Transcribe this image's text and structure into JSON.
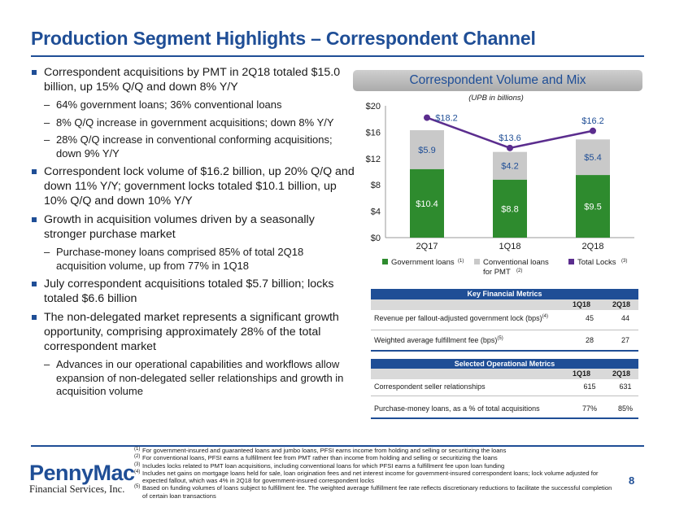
{
  "title": "Production Segment Highlights – Correspondent Channel",
  "bullets": [
    {
      "level": 1,
      "text": "Correspondent acquisitions by PMT in 2Q18 totaled $15.0 billion, up 15% Q/Q and down 8% Y/Y"
    },
    {
      "level": 2,
      "text": "64% government loans; 36% conventional loans"
    },
    {
      "level": 2,
      "text": "8% Q/Q increase in government acquisitions; down 8% Y/Y"
    },
    {
      "level": 2,
      "text": "28% Q/Q increase in conventional conforming acquisitions; down 9% Y/Y"
    },
    {
      "level": 1,
      "text": "Correspondent lock volume of $16.2 billion, up 20% Q/Q and down 11% Y/Y; government locks totaled $10.1 billion, up 10% Q/Q and down 10% Y/Y"
    },
    {
      "level": 1,
      "text": "Growth in acquisition volumes driven by a seasonally stronger purchase market"
    },
    {
      "level": 2,
      "text": "Purchase-money loans comprised 85% of total 2Q18 acquisition volume, up from 77% in 1Q18"
    },
    {
      "level": 1,
      "text": "July correspondent acquisitions totaled $5.7 billion; locks totaled $6.6 billion"
    },
    {
      "level": 1,
      "text": "The non-delegated market represents a significant growth opportunity, comprising approximately 28% of the total correspondent market"
    },
    {
      "level": 2,
      "text": "Advances in our operational capabilities and workflows allow expansion of non-delegated seller relationships and growth in acquisition volume"
    }
  ],
  "chart_header": "Correspondent Volume and Mix",
  "chart_data": {
    "type": "bar",
    "subtitle": "(UPB in billions)",
    "categories": [
      "2Q17",
      "1Q18",
      "2Q18"
    ],
    "series": [
      {
        "name": "Government loans",
        "values": [
          10.4,
          8.8,
          9.5
        ],
        "labels": [
          "$10.4",
          "$8.8",
          "$9.5"
        ],
        "color": "#2e8b2e"
      },
      {
        "name": "Conventional loans for PMT",
        "values": [
          5.9,
          4.2,
          5.4
        ],
        "labels": [
          "$5.9",
          "$4.2",
          "$5.4"
        ],
        "color": "#c9c9c9"
      },
      {
        "name": "Total Locks",
        "kind": "line",
        "values": [
          18.2,
          13.6,
          16.2
        ],
        "labels": [
          "$18.2",
          "$13.6",
          "$16.2"
        ],
        "color": "#5b2d8e"
      }
    ],
    "ylim": [
      0,
      20
    ],
    "yticks": [
      "$0",
      "$4",
      "$8",
      "$12",
      "$16",
      "$20"
    ],
    "legend": [
      {
        "label": "Government loans",
        "note": "(1)",
        "color": "#2e8b2e"
      },
      {
        "label": "Conventional loans for PMT",
        "line1": "Conventional loans",
        "line2": "for PMT",
        "note": "(2)",
        "color": "#c9c9c9"
      },
      {
        "label": "Total Locks",
        "note": "(3)",
        "color": "#5b2d8e"
      }
    ]
  },
  "key_metrics": {
    "header": "Key Financial Metrics",
    "col1": "1Q18",
    "col2": "2Q18",
    "rows": [
      {
        "label": "Revenue per fallout-adjusted government lock (bps)",
        "note": "(4)",
        "v1": "45",
        "v2": "44"
      },
      {
        "label": "Weighted average fulfillment fee (bps)",
        "note": "(5)",
        "v1": "28",
        "v2": "27"
      }
    ]
  },
  "op_metrics": {
    "header": "Selected Operational Metrics",
    "col1": "1Q18",
    "col2": "2Q18",
    "rows": [
      {
        "label": "Correspondent seller relationships",
        "v1": "615",
        "v2": "631"
      },
      {
        "label": "Purchase-money loans, as a % of total acquisitions",
        "v1": "77%",
        "v2": "85%"
      }
    ]
  },
  "footnotes": [
    {
      "mark": "(1)",
      "text": "For government-insured and guaranteed loans and jumbo loans, PFSI earns income from holding and selling or securitizing the loans"
    },
    {
      "mark": "(2)",
      "text": "For conventional loans, PFSI earns a fulfillment fee from PMT rather than income from holding and selling or securitizing the loans"
    },
    {
      "mark": "(3)",
      "text": "Includes locks related to PMT loan acquisitions, including conventional loans for which PFSI earns a fulfillment fee upon loan funding"
    },
    {
      "mark": "(4)",
      "text": "Includes net gains on mortgage loans held for sale, loan origination fees and net interest income for government-insured correspondent loans; lock volume adjusted for expected fallout, which was 4% in 2Q18 for government-insured correspondent locks"
    },
    {
      "mark": "(5)",
      "text": "Based on funding volumes of loans subject to fulfillment fee. The weighted average fulfillment fee rate reflects discretionary reductions to facilitate the successful completion of certain loan transactions"
    }
  ],
  "logo": {
    "word": "PennyMac",
    "sub": "Financial Services, Inc."
  },
  "page_number": "8",
  "colors": {
    "brand": "#1f4e96",
    "government": "#2e8b2e",
    "conventional": "#c9c9c9",
    "locks": "#5b2d8e"
  }
}
